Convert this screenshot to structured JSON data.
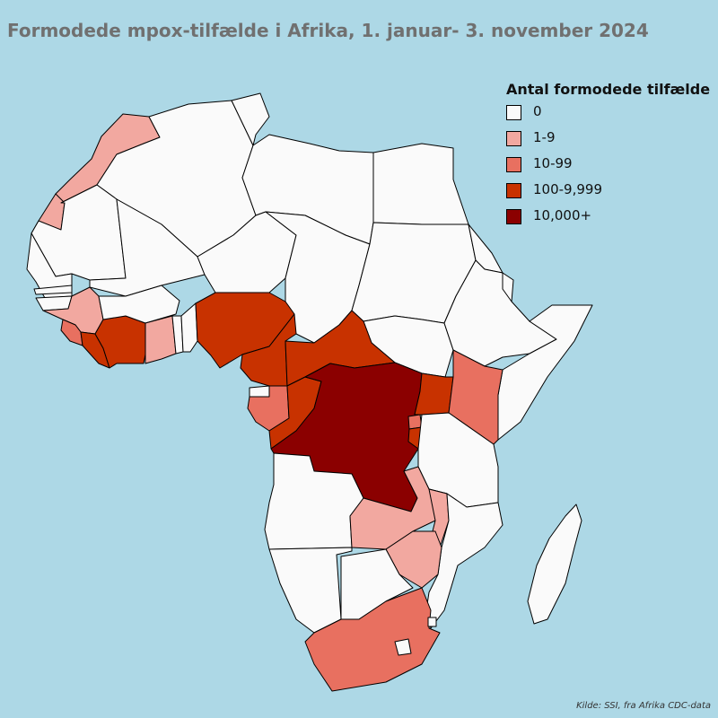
{
  "title": "Formodede mpox-tilfælde i Afrika, 1. januar- 3. november 2024",
  "source": "Kilde: SSI, fra Afrika CDC-data",
  "legend": {
    "title": "Antal formodede tilfælde",
    "items": [
      {
        "label": "0",
        "color": "#fafafa"
      },
      {
        "label": "1-9",
        "color": "#f2a8a0"
      },
      {
        "label": "10-99",
        "color": "#e87060"
      },
      {
        "label": "100-9,999",
        "color": "#c83200"
      },
      {
        "label": "10,000+",
        "color": "#8b0000"
      }
    ]
  },
  "colors": {
    "ocean": "#add8e6",
    "no_data": "#fafafa",
    "border": "#000000"
  },
  "regions": [
    {
      "name": "Morocco",
      "category": "1-9"
    },
    {
      "name": "Western Sahara",
      "category": "1-9"
    },
    {
      "name": "Algeria",
      "category": "0"
    },
    {
      "name": "Tunisia",
      "category": "0"
    },
    {
      "name": "Libya",
      "category": "0"
    },
    {
      "name": "Egypt",
      "category": "0"
    },
    {
      "name": "Mauritania",
      "category": "0"
    },
    {
      "name": "Mali",
      "category": "0"
    },
    {
      "name": "Niger",
      "category": "0"
    },
    {
      "name": "Chad",
      "category": "0"
    },
    {
      "name": "Sudan",
      "category": "0"
    },
    {
      "name": "South Sudan",
      "category": "0"
    },
    {
      "name": "Eritrea",
      "category": "0"
    },
    {
      "name": "Ethiopia",
      "category": "0"
    },
    {
      "name": "Djibouti",
      "category": "0"
    },
    {
      "name": "Somalia",
      "category": "0"
    },
    {
      "name": "Senegal",
      "category": "0"
    },
    {
      "name": "Gambia",
      "category": "0"
    },
    {
      "name": "Guinea-Bissau",
      "category": "0"
    },
    {
      "name": "Guinea",
      "category": "1-9"
    },
    {
      "name": "Sierra Leone",
      "category": "10-99"
    },
    {
      "name": "Liberia",
      "category": "100-9,999"
    },
    {
      "name": "Cote d'Ivoire",
      "category": "100-9,999"
    },
    {
      "name": "Burkina Faso",
      "category": "0"
    },
    {
      "name": "Ghana",
      "category": "1-9"
    },
    {
      "name": "Togo",
      "category": "0"
    },
    {
      "name": "Benin",
      "category": "0"
    },
    {
      "name": "Nigeria",
      "category": "100-9,999"
    },
    {
      "name": "Cameroon",
      "category": "100-9,999"
    },
    {
      "name": "Central African Republic",
      "category": "100-9,999"
    },
    {
      "name": "Equatorial Guinea",
      "category": "0"
    },
    {
      "name": "Gabon",
      "category": "10-99"
    },
    {
      "name": "Republic of the Congo",
      "category": "100-9,999"
    },
    {
      "name": "Democratic Republic of the Congo",
      "category": "10,000+"
    },
    {
      "name": "Uganda",
      "category": "100-9,999"
    },
    {
      "name": "Kenya",
      "category": "10-99"
    },
    {
      "name": "Rwanda",
      "category": "10-99"
    },
    {
      "name": "Burundi",
      "category": "100-9,999"
    },
    {
      "name": "Tanzania",
      "category": "0"
    },
    {
      "name": "Angola",
      "category": "0"
    },
    {
      "name": "Zambia",
      "category": "1-9"
    },
    {
      "name": "Malawi",
      "category": "1-9"
    },
    {
      "name": "Mozambique",
      "category": "0"
    },
    {
      "name": "Zimbabwe",
      "category": "1-9"
    },
    {
      "name": "Namibia",
      "category": "0"
    },
    {
      "name": "Botswana",
      "category": "0"
    },
    {
      "name": "South Africa",
      "category": "10-99"
    },
    {
      "name": "Lesotho",
      "category": "0"
    },
    {
      "name": "Eswatini",
      "category": "0"
    },
    {
      "name": "Madagascar",
      "category": "0"
    }
  ]
}
